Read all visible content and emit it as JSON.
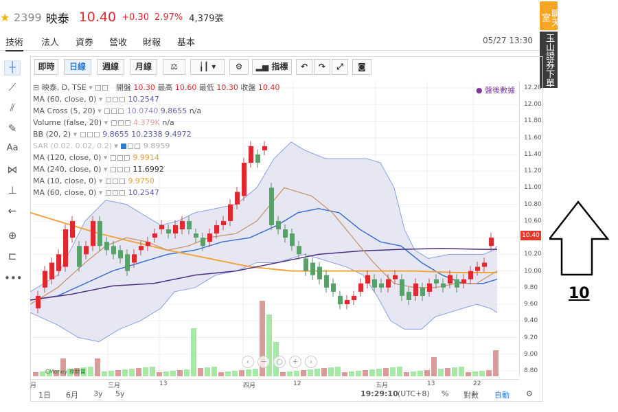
{
  "header": {
    "code": "2399",
    "name": "映泰",
    "price": "10.40",
    "change": "+0.30",
    "change_pct": "2.97%",
    "volume": "4,379張"
  },
  "tabs": [
    {
      "label": "技術",
      "active": true
    },
    {
      "label": "法人"
    },
    {
      "label": "資券"
    },
    {
      "label": "營收"
    },
    {
      "label": "財報"
    },
    {
      "label": "基本"
    }
  ],
  "datetime": "05/27 13:30",
  "side_panels": {
    "chat": "聊天室",
    "broker": "玉山證券下單"
  },
  "toolbar": {
    "intraday": "即時",
    "daily": "日線",
    "weekly": "週線",
    "monthly": "月線",
    "indicators": "指標"
  },
  "legend": {
    "symbol": "映泰, D, TSE",
    "open_label": "開盤",
    "open": "10.30",
    "high_label": "最高",
    "high": "10.60",
    "low_label": "最低",
    "low": "10.30",
    "close_label": "收盤",
    "close": "10.40",
    "rows": [
      {
        "name": "MA (60, close, 0)",
        "values": [
          "10.2547"
        ],
        "colors": [
          "#5b5ba8"
        ]
      },
      {
        "name": "MA Cross (5, 20)",
        "values": [
          "10.0740",
          "9.8655",
          "n/a"
        ],
        "colors": [
          "#8c8cc8",
          "#5b5ba8",
          "#555555"
        ]
      },
      {
        "name": "Volume (false, 20)",
        "values": [
          "4.379K",
          "n/a"
        ],
        "colors": [
          "#e0a0a0",
          "#555555"
        ]
      },
      {
        "name": "BB (20, 2)",
        "values": [
          "9.8655",
          "10.2338",
          "9.4972"
        ],
        "colors": [
          "#5b5ba8",
          "#5b5ba8",
          "#5b5ba8"
        ]
      },
      {
        "name": "SAR (0.02, 0.02, 0.2)",
        "values": [
          "9.8959"
        ],
        "colors": [
          "#aaaaaa"
        ]
      },
      {
        "name": "MA (120, close, 0)",
        "values": [
          "9.9914"
        ],
        "colors": [
          "#e8a33c"
        ]
      },
      {
        "name": "MA (240, close, 0)",
        "values": [
          "11.6992"
        ],
        "colors": [
          "#333333"
        ]
      },
      {
        "name": "MA (10, close, 0)",
        "values": [
          "9.9750"
        ],
        "colors": [
          "#e8a33c"
        ]
      },
      {
        "name": "MA (60, close, 0)",
        "values": [
          "10.2547"
        ],
        "colors": [
          "#5b5ba8"
        ]
      }
    ]
  },
  "after_hours": "● 盤後數據",
  "y_ticks": [
    "12.20",
    "12.00",
    "11.80",
    "11.60",
    "11.40",
    "11.20",
    "11.00",
    "10.80",
    "10.60",
    "10.40",
    "10.20",
    "10.00",
    "9.80",
    "9.60",
    "9.40",
    "9.20",
    "9.00",
    "8.80"
  ],
  "last_price_tag": "10.40",
  "x_ticks": [
    "月",
    "三月",
    "13",
    "四月",
    "12",
    "五月",
    "13",
    "22"
  ],
  "bottom": {
    "ranges": [
      "1日",
      "6月",
      "3y",
      "5y"
    ],
    "time": "19:29:10",
    "tz": "(UTC+8)",
    "pct": "%",
    "log": "對數",
    "auto": "自動"
  },
  "annotation_value": "10",
  "watermark": "CMoney 理財寶",
  "colors": {
    "up": "#e0282e",
    "down": "#5aa06a",
    "bb_fill": "#e3e3f2",
    "ma_blue": "#3b6fd0",
    "ma_orange": "#f0a63a",
    "ma_purple": "#4b2d7f"
  }
}
